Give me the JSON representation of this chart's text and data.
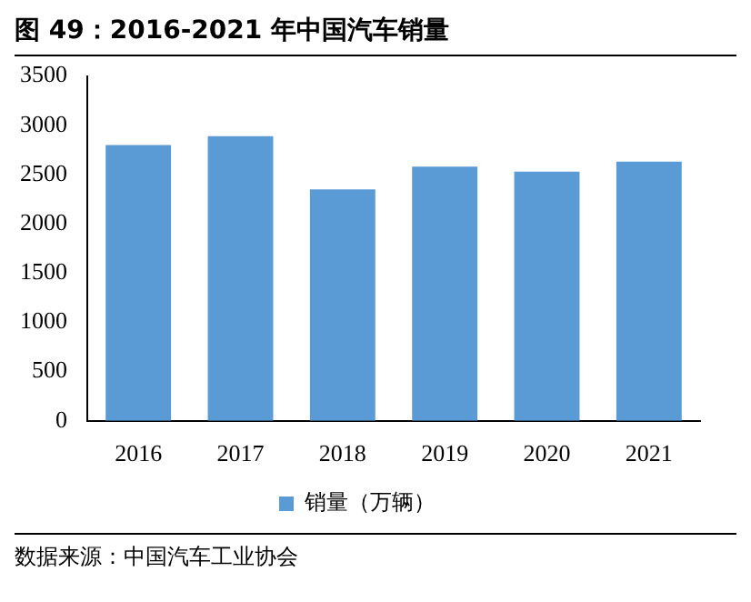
{
  "chart_data": {
    "type": "bar",
    "title": "图 49：2016-2021 年中国汽车销量",
    "categories": [
      "2016",
      "2017",
      "2018",
      "2019",
      "2020",
      "2021"
    ],
    "series": [
      {
        "name": "销量（万辆）",
        "color": "#5b9bd5",
        "values": [
          2800,
          2890,
          2350,
          2580,
          2530,
          2630
        ]
      }
    ],
    "ylim": [
      0,
      3500
    ],
    "yticks": [
      0,
      500,
      1000,
      1500,
      2000,
      2500,
      3000,
      3500
    ],
    "grid": false,
    "legend": "bottom",
    "annotations": [
      "数据来源：中国汽车工业协会"
    ]
  }
}
